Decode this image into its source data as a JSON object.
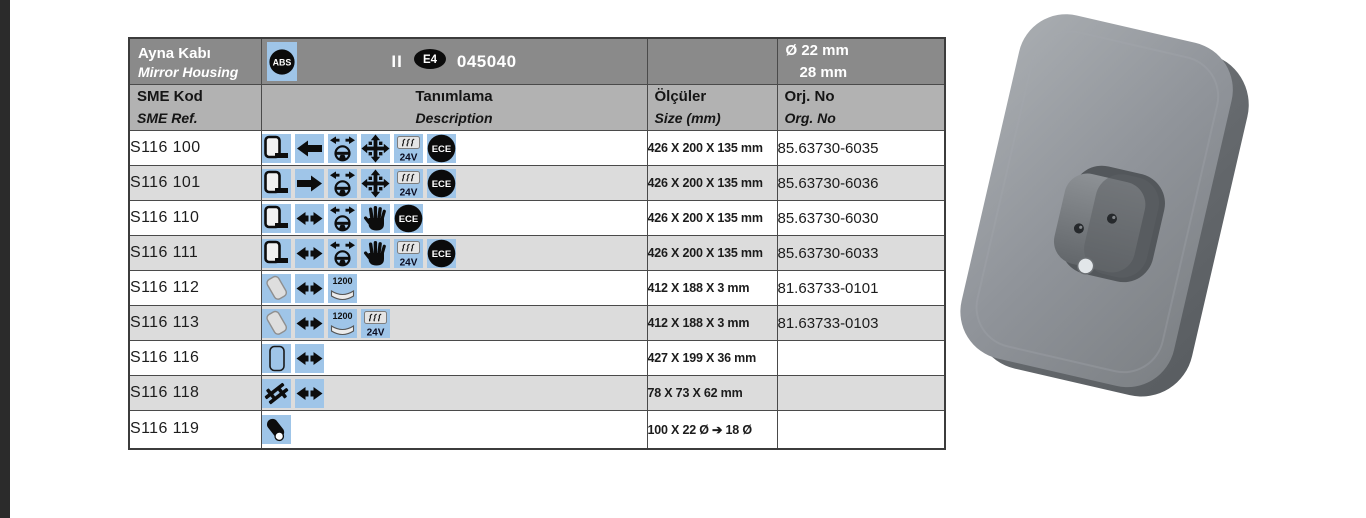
{
  "page": {
    "background": "#ffffff",
    "sidebar_color": "#2b2b2b"
  },
  "header": {
    "title_tr": "Ayna Kabı",
    "title_en": "Mirror Housing",
    "abs_label": "ABS",
    "class_mark": "II",
    "e_mark": "E4",
    "approval_no": "045040",
    "diameter_line1": "Ø 22 mm",
    "diameter_line2": "28 mm"
  },
  "columns": {
    "code_tr": "SME Kod",
    "code_en": "SME Ref.",
    "desc_tr": "Tanımlama",
    "desc_en": "Description",
    "size_tr": "Ölçüler",
    "size_en": "Size (mm)",
    "org_tr": "Orj. No",
    "org_en": "Org. No"
  },
  "icon_labels": {
    "heater": "24V",
    "ece": "ECE",
    "radius": "1200",
    "abs": "ABS"
  },
  "colors": {
    "icon_bg": "#9fc5e8",
    "header1_bg": "#8a8a8a",
    "header2_bg": "#b2b2b2",
    "row_alt_bg": "#dcdcdc",
    "border": "#4a4a4a"
  },
  "rows": [
    {
      "code": "S116 100",
      "icons": [
        "mirror-housing",
        "arrow-left",
        "steering-remote",
        "electric-adjust",
        "heater-24v",
        "ece"
      ],
      "size": "426 X 200 X 135 mm",
      "org_no": "85.63730-6035"
    },
    {
      "code": "S116 101",
      "icons": [
        "mirror-housing",
        "arrow-right",
        "steering-remote",
        "electric-adjust",
        "heater-24v",
        "ece"
      ],
      "size": "426 X 200 X 135 mm",
      "org_no": "85.63730-6036"
    },
    {
      "code": "S116 110",
      "icons": [
        "mirror-housing",
        "arrow-both",
        "steering-remote",
        "hand-manual",
        "ece"
      ],
      "size": "426 X 200 X 135 mm",
      "org_no": "85.63730-6030"
    },
    {
      "code": "S116 111",
      "icons": [
        "mirror-housing",
        "arrow-both",
        "steering-remote",
        "hand-manual",
        "heater-24v",
        "ece"
      ],
      "size": "426 X 200 X 135 mm",
      "org_no": "85.63730-6033"
    },
    {
      "code": "S116 112",
      "icons": [
        "glass-angled",
        "arrow-both",
        "radius-1200"
      ],
      "size": "412 X 188 X 3 mm",
      "org_no": "81.63733-0101"
    },
    {
      "code": "S116 113",
      "icons": [
        "glass-angled",
        "arrow-both",
        "radius-1200",
        "heater-24v"
      ],
      "size": "412 X 188 X 3 mm",
      "org_no": "81.63733-0103"
    },
    {
      "code": "S116 116",
      "icons": [
        "frame-rim",
        "arrow-both"
      ],
      "size": "427 X 199 X 36 mm",
      "org_no": ""
    },
    {
      "code": "S116 118",
      "icons": [
        "bracket-clamp",
        "arrow-both"
      ],
      "size": "78 X 73 X 62 mm",
      "org_no": ""
    },
    {
      "code": "S116 119",
      "icons": [
        "arm-pivot"
      ],
      "size": "100 X 22 Ø ➔ 18 Ø",
      "org_no": ""
    }
  ]
}
